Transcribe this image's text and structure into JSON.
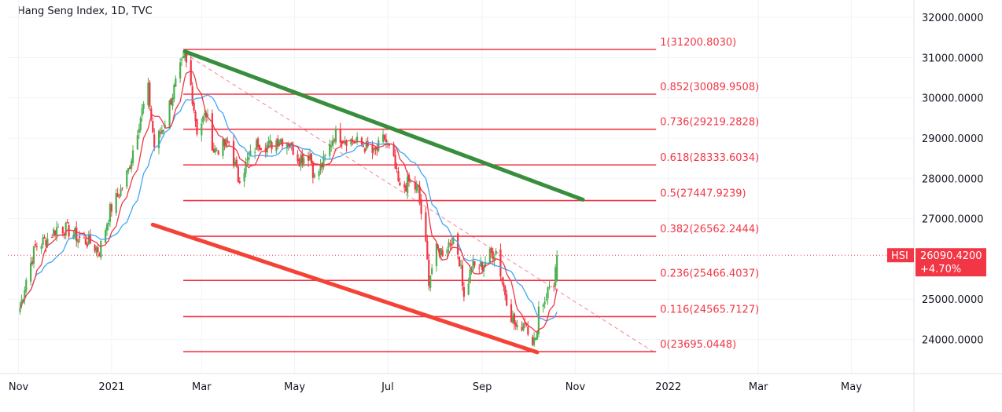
{
  "header": {
    "title": "Hang Seng Index, 1D, TVC"
  },
  "price_tag": {
    "symbol": "HSI",
    "price": "26090.4200",
    "change": "+4.70%"
  },
  "colors": {
    "fib": "#f23645",
    "up_trend": "#388e3c",
    "down_trend": "#f44336",
    "candle_up": "#4caf50",
    "candle_down": "#f23645",
    "ma_fast": "#f23645",
    "ma_slow": "#42a5f5",
    "tag_bg": "#f23645"
  },
  "chart_data": {
    "type": "candlestick",
    "title": "Hang Seng Index, 1D, TVC",
    "x_range": [
      "2020-11-01",
      "2022-05-31"
    ],
    "ylim": [
      23000,
      32400
    ],
    "y_ticks": [
      "32000.0000",
      "31000.0000",
      "30000.0000",
      "29000.0000",
      "28000.0000",
      "27000.0000",
      "25000.0000",
      "24000.0000"
    ],
    "x_ticks": [
      {
        "label": "Nov",
        "date": "2020-11-01"
      },
      {
        "label": "2021",
        "date": "2021-01-01"
      },
      {
        "label": "Mar",
        "date": "2021-03-01"
      },
      {
        "label": "May",
        "date": "2021-05-01"
      },
      {
        "label": "Jul",
        "date": "2021-07-01"
      },
      {
        "label": "Sep",
        "date": "2021-09-01"
      },
      {
        "label": "Nov",
        "date": "2021-11-01"
      },
      {
        "label": "2022",
        "date": "2022-01-01"
      },
      {
        "label": "Mar",
        "date": "2022-03-01"
      },
      {
        "label": "May",
        "date": "2022-05-01"
      }
    ],
    "fib_levels": [
      {
        "label": "1(31200.8030)",
        "value": 31200.803
      },
      {
        "label": "0.852(30089.9508)",
        "value": 30089.9508
      },
      {
        "label": "0.736(29219.2828)",
        "value": 29219.2828
      },
      {
        "label": "0.618(28333.6034)",
        "value": 28333.6034
      },
      {
        "label": "0.5(27447.9239)",
        "value": 27447.9239
      },
      {
        "label": "0.382(26562.2444)",
        "value": 26562.2444
      },
      {
        "label": "0.236(25466.4037)",
        "value": 25466.4037
      },
      {
        "label": "0.116(24565.7127)",
        "value": 24565.7127
      },
      {
        "label": "0(23695.0448)",
        "value": 23695.0448
      }
    ],
    "fib_range": {
      "start": "2021-02-17",
      "end": "2021-12-24"
    },
    "trendlines": [
      {
        "name": "upper",
        "color": "#388e3c",
        "points": [
          [
            "2021-02-18",
            31150
          ],
          [
            "2021-11-06",
            27470
          ]
        ]
      },
      {
        "name": "lower",
        "color": "#f44336",
        "points": [
          [
            "2021-01-28",
            26850
          ],
          [
            "2021-10-07",
            23680
          ]
        ]
      },
      {
        "name": "dashed",
        "color": "#f23645",
        "points": [
          [
            "2021-02-18",
            31100
          ],
          [
            "2021-12-22",
            23700
          ]
        ]
      }
    ],
    "last_price": 26090.42,
    "change_pct": "+4.70%",
    "price_path": [
      [
        "2020-11-01",
        24600
      ],
      [
        "2020-11-06",
        25500
      ],
      [
        "2020-11-12",
        26300
      ],
      [
        "2020-11-20",
        26500
      ],
      [
        "2020-11-27",
        26800
      ],
      [
        "2020-12-04",
        26700
      ],
      [
        "2020-12-11",
        26500
      ],
      [
        "2020-12-18",
        26400
      ],
      [
        "2020-12-24",
        26200
      ],
      [
        "2020-12-31",
        27200
      ],
      [
        "2021-01-07",
        27700
      ],
      [
        "2021-01-12",
        28200
      ],
      [
        "2021-01-19",
        29400
      ],
      [
        "2021-01-25",
        30200
      ],
      [
        "2021-01-29",
        28800
      ],
      [
        "2021-02-04",
        29300
      ],
      [
        "2021-02-10",
        30100
      ],
      [
        "2021-02-15",
        30700
      ],
      [
        "2021-02-18",
        31000
      ],
      [
        "2021-02-22",
        30300
      ],
      [
        "2021-02-26",
        29200
      ],
      [
        "2021-03-04",
        29600
      ],
      [
        "2021-03-09",
        28700
      ],
      [
        "2021-03-15",
        28800
      ],
      [
        "2021-03-19",
        28900
      ],
      [
        "2021-03-25",
        28000
      ],
      [
        "2021-03-31",
        28400
      ],
      [
        "2021-04-07",
        28900
      ],
      [
        "2021-04-14",
        28800
      ],
      [
        "2021-04-21",
        29000
      ],
      [
        "2021-04-27",
        28900
      ],
      [
        "2021-05-04",
        28500
      ],
      [
        "2021-05-11",
        28600
      ],
      [
        "2021-05-14",
        28000
      ],
      [
        "2021-05-20",
        28400
      ],
      [
        "2021-05-27",
        29100
      ],
      [
        "2021-06-03",
        29000
      ],
      [
        "2021-06-10",
        28900
      ],
      [
        "2021-06-16",
        28800
      ],
      [
        "2021-06-22",
        28600
      ],
      [
        "2021-06-29",
        29000
      ],
      [
        "2021-07-05",
        28400
      ],
      [
        "2021-07-09",
        27700
      ],
      [
        "2021-07-15",
        27900
      ],
      [
        "2021-07-21",
        27700
      ],
      [
        "2021-07-26",
        26300
      ],
      [
        "2021-07-28",
        25500
      ],
      [
        "2021-08-02",
        26200
      ],
      [
        "2021-08-06",
        26200
      ],
      [
        "2021-08-12",
        26500
      ],
      [
        "2021-08-18",
        25900
      ],
      [
        "2021-08-20",
        25000
      ],
      [
        "2021-08-25",
        25800
      ],
      [
        "2021-08-31",
        25800
      ],
      [
        "2021-09-06",
        26100
      ],
      [
        "2021-09-10",
        26200
      ],
      [
        "2021-09-15",
        25300
      ],
      [
        "2021-09-20",
        24600
      ],
      [
        "2021-09-24",
        24200
      ],
      [
        "2021-09-29",
        24500
      ],
      [
        "2021-10-04",
        24000
      ],
      [
        "2021-10-06",
        23900
      ],
      [
        "2021-10-08",
        24800
      ],
      [
        "2021-10-12",
        25000
      ],
      [
        "2021-10-15",
        25300
      ],
      [
        "2021-10-18",
        25400
      ],
      [
        "2021-10-20",
        26090
      ]
    ]
  }
}
